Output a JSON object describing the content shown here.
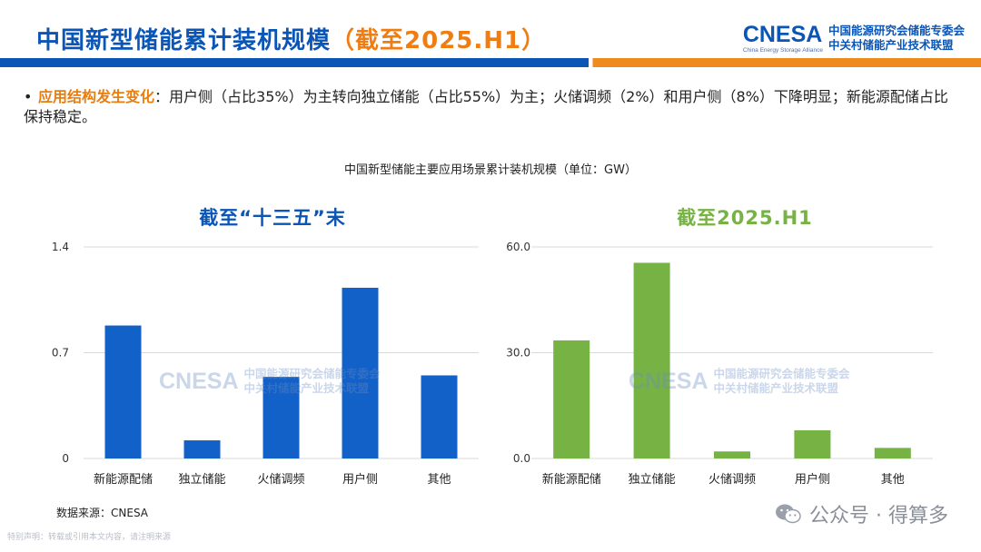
{
  "header": {
    "title_main": "中国新型储能累计装机规模",
    "title_highlight": "（截至2025.H1）",
    "logo_text": "CNESA",
    "logo_sub": "China Energy Storage Alliance",
    "org_line1": "中国能源研究会储能专委会",
    "org_line2": "中关村储能产业技术联盟"
  },
  "bullet": {
    "keyword": "应用结构发生变化",
    "text": "：用户侧（占比35%）为主转向独立储能（占比55%）为主；火储调频（2%）和用户侧（8%）下降明显；新能源配储占比保持稳定。"
  },
  "chart_caption": "中国新型储能主要应用场景累计装机规模（单位：GW）",
  "colors": {
    "blue": "#1261c8",
    "green": "#77b244",
    "title_blue": "#0a55b5",
    "orange": "#ef7d12"
  },
  "chart_data": [
    {
      "type": "bar",
      "title": "截至“十三五”末",
      "categories": [
        "新能源配储",
        "独立储能",
        "火储调频",
        "用户侧",
        "其他"
      ],
      "values": [
        0.88,
        0.12,
        0.54,
        1.13,
        0.55
      ],
      "ylim": [
        0,
        1.4
      ],
      "yticks": [
        "0",
        "0.7",
        "1.4"
      ],
      "ytick_values": [
        0,
        0.7,
        1.4
      ],
      "grid": true,
      "color": "#1261c8"
    },
    {
      "type": "bar",
      "title": "截至2025.H1",
      "categories": [
        "新能源配储",
        "独立储能",
        "火储调频",
        "用户侧",
        "其他"
      ],
      "values": [
        33.5,
        55.5,
        2.0,
        8.0,
        3.0
      ],
      "ylim": [
        0,
        60
      ],
      "yticks": [
        "0.0",
        "30.0",
        "60.0"
      ],
      "ytick_values": [
        0,
        30,
        60
      ],
      "grid": true,
      "color": "#77b244"
    }
  ],
  "footer": {
    "source": "数据来源：CNESA",
    "disclaimer": "特别声明：转载或引用本文内容，请注明来源",
    "wechat": "公众号 · 得算多"
  }
}
